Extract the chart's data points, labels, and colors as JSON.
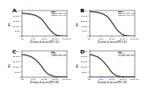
{
  "panels": [
    {
      "label": "A",
      "xlabel": "Dilution of serum RTR 141",
      "ylabel": "MFI",
      "ymax": 25000
    },
    {
      "label": "B",
      "xlabel": "Dilution of serum RTR 141",
      "ylabel": "MFI",
      "ymax": 30000
    },
    {
      "label": "C",
      "xlabel": "Dilution of serum RTR 329",
      "ylabel": "MFI",
      "ymax": 25000
    },
    {
      "label": "D",
      "xlabel": "Dilution of serum RTR 329",
      "ylabel": "MFI",
      "ymax": 25000
    }
  ],
  "line_colors": [
    "#1a1a1a",
    "#c85030",
    "#8090c8"
  ],
  "legend_labels": [
    "GST",
    "GST-BKV VP1",
    "GST-TSV VP1"
  ],
  "xvals": [
    100,
    150,
    200,
    300,
    500,
    700,
    1000,
    1500,
    2000,
    3000,
    5000,
    7000,
    10000,
    15000,
    20000,
    30000,
    50000,
    70000,
    100000,
    150000,
    200000,
    300000,
    500000,
    700000,
    1000000
  ],
  "curves_A": {
    "black": [
      22500,
      22400,
      22200,
      22000,
      21700,
      21400,
      21000,
      20400,
      19800,
      18800,
      17000,
      15200,
      13000,
      10500,
      8500,
      6200,
      3800,
      2400,
      1400,
      800,
      500,
      300,
      200,
      170,
      150
    ],
    "red": [
      22000,
      21900,
      21700,
      21500,
      21200,
      20900,
      20500,
      19900,
      19300,
      18300,
      16600,
      14800,
      12600,
      10100,
      8100,
      5900,
      3600,
      2200,
      1300,
      750,
      470,
      280,
      185,
      160,
      140
    ],
    "blue": [
      250,
      250,
      250,
      250,
      250,
      250,
      250,
      250,
      250,
      250,
      250,
      250,
      250,
      250,
      250,
      250,
      250,
      250,
      250,
      250,
      250,
      250,
      250,
      250,
      250
    ]
  },
  "curves_B": {
    "black": [
      29000,
      28800,
      28600,
      28300,
      27900,
      27500,
      26900,
      26100,
      25300,
      23900,
      21500,
      19000,
      16000,
      12500,
      10000,
      7200,
      4400,
      2700,
      1600,
      900,
      550,
      330,
      210,
      180,
      160
    ],
    "red": [
      28500,
      28300,
      28100,
      27800,
      27400,
      27000,
      26400,
      25600,
      24800,
      23400,
      21000,
      18500,
      15500,
      12000,
      9500,
      6800,
      4100,
      2500,
      1450,
      830,
      500,
      300,
      195,
      168,
      150
    ],
    "blue": [
      250,
      250,
      250,
      250,
      250,
      250,
      250,
      250,
      250,
      250,
      250,
      250,
      250,
      250,
      250,
      250,
      250,
      250,
      250,
      250,
      250,
      250,
      250,
      250,
      250
    ]
  },
  "curves_C": {
    "black": [
      22000,
      21800,
      21500,
      21000,
      20300,
      19500,
      18500,
      17000,
      15800,
      13800,
      11000,
      8500,
      6200,
      4300,
      3100,
      2100,
      1200,
      700,
      420,
      270,
      200,
      160,
      140,
      130,
      120
    ],
    "red": [
      21500,
      21300,
      21000,
      20500,
      19800,
      19000,
      18000,
      16500,
      15300,
      13300,
      10500,
      8100,
      5900,
      4100,
      2900,
      2000,
      1100,
      660,
      390,
      255,
      190,
      155,
      135,
      125,
      115
    ],
    "blue": [
      250,
      250,
      250,
      250,
      250,
      250,
      250,
      250,
      250,
      250,
      250,
      250,
      250,
      250,
      250,
      250,
      250,
      250,
      250,
      250,
      250,
      250,
      250,
      250,
      250
    ]
  },
  "curves_D": {
    "black": [
      22000,
      21700,
      21300,
      20700,
      19800,
      18800,
      17500,
      15700,
      14200,
      12000,
      9000,
      6500,
      4500,
      2900,
      2000,
      1200,
      620,
      360,
      220,
      155,
      130,
      115,
      105,
      100,
      95
    ],
    "red": [
      21500,
      21200,
      20800,
      20200,
      19300,
      18300,
      17000,
      15200,
      13700,
      11500,
      8500,
      6100,
      4200,
      2700,
      1850,
      1100,
      570,
      330,
      205,
      145,
      122,
      108,
      100,
      96,
      92
    ],
    "blue": [
      600,
      580,
      560,
      540,
      510,
      490,
      460,
      430,
      410,
      380,
      345,
      315,
      285,
      258,
      240,
      218,
      196,
      182,
      170,
      160,
      155,
      150,
      145,
      142,
      140
    ]
  },
  "background": "#ffffff"
}
